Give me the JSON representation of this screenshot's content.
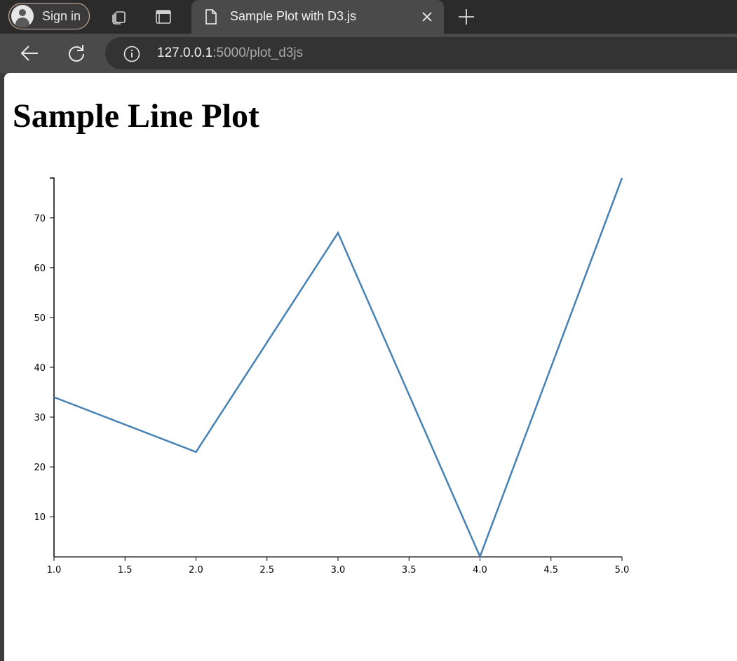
{
  "browser": {
    "sign_in_label": "Sign in",
    "tab_title": "Sample Plot with D3.js",
    "url_host": "127.0.0.1",
    "url_rest": ":5000/plot_d3js",
    "icons": [
      "avatar-icon",
      "collections-icon",
      "tab-actions-icon",
      "document-icon",
      "close-icon",
      "new-tab-icon",
      "back-icon",
      "reload-icon",
      "site-info-icon"
    ]
  },
  "page": {
    "heading": "Sample Line Plot"
  },
  "chart_data": {
    "type": "line",
    "title": "",
    "xlabel": "",
    "ylabel": "",
    "x": [
      1,
      2,
      3,
      4,
      5
    ],
    "series": [
      {
        "values": [
          34,
          23,
          67,
          2,
          78
        ],
        "color": "#4682b4"
      }
    ],
    "xlim": [
      1,
      5
    ],
    "ylim": [
      2,
      78
    ],
    "x_ticks": [
      "1.0",
      "1.5",
      "2.0",
      "2.5",
      "3.0",
      "3.5",
      "4.0",
      "4.5",
      "5.0"
    ],
    "y_ticks": [
      "10",
      "20",
      "30",
      "40",
      "50",
      "60",
      "70"
    ],
    "grid": false,
    "legend": "none"
  }
}
